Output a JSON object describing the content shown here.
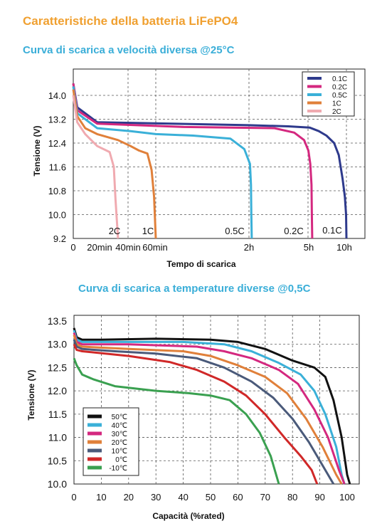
{
  "title": "Caratteristiche della batteria LiFePO4",
  "chart_data": [
    {
      "type": "line",
      "title": "Curva di scarica a velocità diversa @25°C",
      "xlabel": "Tempo di scarica",
      "ylabel": "Tensione (V)",
      "ylim": [
        9.2,
        14.5
      ],
      "yticks": [
        "14.0",
        "13.2",
        "12.4",
        "11.6",
        "10.8",
        "10.0",
        "9.2"
      ],
      "xticks": [
        "0",
        "20min",
        "40min",
        "60min",
        "2h",
        "5h",
        "10h"
      ],
      "legend_position": "top-right",
      "grid": true,
      "series": [
        {
          "name": "0.1C",
          "color": "#2e3a8c",
          "end_label": "0.1C",
          "points": [
            [
              0,
              14.4
            ],
            [
              0.05,
              13.6
            ],
            [
              0.3,
              13.1
            ],
            [
              2,
              13.0
            ],
            [
              4,
              12.96
            ],
            [
              5.2,
              12.92
            ],
            [
              6.4,
              12.8
            ],
            [
              7.4,
              12.65
            ],
            [
              8.4,
              12.4
            ],
            [
              9.0,
              12.0
            ],
            [
              9.5,
              11.2
            ],
            [
              9.8,
              10.6
            ],
            [
              9.95,
              10.0
            ],
            [
              10.0,
              9.2
            ]
          ]
        },
        {
          "name": "0.2C",
          "color": "#d4287f",
          "end_label": "0.2C",
          "points": [
            [
              0,
              14.4
            ],
            [
              0.05,
              13.5
            ],
            [
              0.3,
              13.05
            ],
            [
              1.3,
              12.94
            ],
            [
              3.3,
              12.9
            ],
            [
              4.3,
              12.75
            ],
            [
              4.8,
              12.5
            ],
            [
              5.05,
              12.15
            ],
            [
              5.3,
              11.7
            ],
            [
              5.45,
              11.0
            ],
            [
              5.5,
              10.0
            ],
            [
              5.55,
              9.2
            ]
          ]
        },
        {
          "name": "0.5C",
          "color": "#3ab0d8",
          "end_label": "0.5C",
          "points": [
            [
              0,
              14.3
            ],
            [
              0.05,
              13.4
            ],
            [
              0.3,
              12.9
            ],
            [
              0.7,
              12.8
            ],
            [
              1.0,
              12.7
            ],
            [
              1.4,
              12.65
            ],
            [
              1.8,
              12.55
            ],
            [
              1.95,
              12.2
            ],
            [
              2.05,
              11.7
            ],
            [
              2.1,
              11.0
            ],
            [
              2.12,
              10.0
            ],
            [
              2.14,
              9.2
            ]
          ]
        },
        {
          "name": "1C",
          "color": "#e0803a",
          "end_label": "1C",
          "points": [
            [
              0,
              14.2
            ],
            [
              0.05,
              13.3
            ],
            [
              0.15,
              12.9
            ],
            [
              0.3,
              12.7
            ],
            [
              0.55,
              12.5
            ],
            [
              0.7,
              12.3
            ],
            [
              0.8,
              12.15
            ],
            [
              0.9,
              12.05
            ],
            [
              0.95,
              11.5
            ],
            [
              0.98,
              10.6
            ],
            [
              1.0,
              9.2
            ]
          ]
        },
        {
          "name": "2C",
          "color": "#f0aab0",
          "end_label": "2C",
          "points": [
            [
              0,
              14.0
            ],
            [
              0.05,
              13.1
            ],
            [
              0.15,
              12.7
            ],
            [
              0.3,
              12.3
            ],
            [
              0.45,
              12.1
            ],
            [
              0.5,
              11.6
            ],
            [
              0.52,
              10.5
            ],
            [
              0.55,
              9.2
            ]
          ]
        }
      ]
    },
    {
      "type": "line",
      "title": "Curva di scarica a temperature diverse @0,5C",
      "xlabel": "Capacità  (%rated)",
      "ylabel": "Tensione (V)",
      "ylim": [
        10.0,
        13.5
      ],
      "xlim": [
        0,
        100
      ],
      "yticks": [
        "13.5",
        "13.0",
        "12.5",
        "12.0",
        "11.5",
        "11.0",
        "10.5",
        "10.0"
      ],
      "xticks": [
        "0",
        "10",
        "20",
        "30",
        "40",
        "50",
        "60",
        "70",
        "80",
        "90",
        "100"
      ],
      "legend_position": "bottom-left",
      "grid": true,
      "series": [
        {
          "name": "50℃",
          "color": "#111111",
          "points": [
            [
              0,
              13.35
            ],
            [
              1,
              13.15
            ],
            [
              3,
              13.1
            ],
            [
              10,
              13.1
            ],
            [
              30,
              13.12
            ],
            [
              50,
              13.1
            ],
            [
              60,
              13.05
            ],
            [
              70,
              12.9
            ],
            [
              80,
              12.65
            ],
            [
              88,
              12.5
            ],
            [
              92,
              12.3
            ],
            [
              95,
              11.8
            ],
            [
              98,
              11.0
            ],
            [
              100,
              10.2
            ],
            [
              101,
              10.0
            ]
          ]
        },
        {
          "name": "40℃",
          "color": "#3ab0d8",
          "points": [
            [
              0,
              13.3
            ],
            [
              1,
              13.1
            ],
            [
              3,
              13.05
            ],
            [
              10,
              13.05
            ],
            [
              40,
              13.05
            ],
            [
              55,
              13.0
            ],
            [
              65,
              12.85
            ],
            [
              75,
              12.6
            ],
            [
              83,
              12.35
            ],
            [
              88,
              12.0
            ],
            [
              92,
              11.5
            ],
            [
              96,
              10.8
            ],
            [
              98,
              10.2
            ],
            [
              99,
              10.0
            ]
          ]
        },
        {
          "name": "30℃",
          "color": "#d4287f",
          "points": [
            [
              0,
              13.25
            ],
            [
              1,
              13.05
            ],
            [
              3,
              13.0
            ],
            [
              20,
              13.0
            ],
            [
              45,
              12.95
            ],
            [
              55,
              12.85
            ],
            [
              65,
              12.7
            ],
            [
              75,
              12.45
            ],
            [
              82,
              12.15
            ],
            [
              88,
              11.6
            ],
            [
              93,
              11.0
            ],
            [
              97,
              10.3
            ],
            [
              99,
              10.0
            ]
          ]
        },
        {
          "name": "20℃",
          "color": "#e0803a",
          "points": [
            [
              0,
              13.2
            ],
            [
              1,
              13.0
            ],
            [
              3,
              12.95
            ],
            [
              20,
              12.9
            ],
            [
              40,
              12.85
            ],
            [
              50,
              12.75
            ],
            [
              60,
              12.55
            ],
            [
              70,
              12.3
            ],
            [
              78,
              11.95
            ],
            [
              85,
              11.4
            ],
            [
              91,
              10.8
            ],
            [
              96,
              10.2
            ],
            [
              98,
              10.0
            ]
          ]
        },
        {
          "name": "10℃",
          "color": "#4a5a7a",
          "points": [
            [
              0,
              13.1
            ],
            [
              1,
              12.95
            ],
            [
              3,
              12.9
            ],
            [
              15,
              12.85
            ],
            [
              30,
              12.8
            ],
            [
              45,
              12.7
            ],
            [
              55,
              12.5
            ],
            [
              65,
              12.2
            ],
            [
              73,
              11.85
            ],
            [
              80,
              11.4
            ],
            [
              86,
              10.9
            ],
            [
              91,
              10.4
            ],
            [
              95,
              10.0
            ]
          ]
        },
        {
          "name": "0℃",
          "color": "#d02828",
          "points": [
            [
              0,
              13.0
            ],
            [
              1,
              12.88
            ],
            [
              3,
              12.85
            ],
            [
              20,
              12.75
            ],
            [
              35,
              12.62
            ],
            [
              45,
              12.45
            ],
            [
              55,
              12.2
            ],
            [
              63,
              11.9
            ],
            [
              70,
              11.5
            ],
            [
              77,
              11.0
            ],
            [
              83,
              10.6
            ],
            [
              87,
              10.3
            ],
            [
              89,
              10.0
            ]
          ]
        },
        {
          "name": "-10℃",
          "color": "#3aa050",
          "points": [
            [
              0,
              12.7
            ],
            [
              1,
              12.55
            ],
            [
              3,
              12.35
            ],
            [
              7,
              12.25
            ],
            [
              15,
              12.1
            ],
            [
              30,
              12.0
            ],
            [
              42,
              11.95
            ],
            [
              50,
              11.9
            ],
            [
              57,
              11.8
            ],
            [
              63,
              11.5
            ],
            [
              68,
              11.1
            ],
            [
              72,
              10.6
            ],
            [
              75,
              10.0
            ]
          ]
        }
      ]
    }
  ]
}
